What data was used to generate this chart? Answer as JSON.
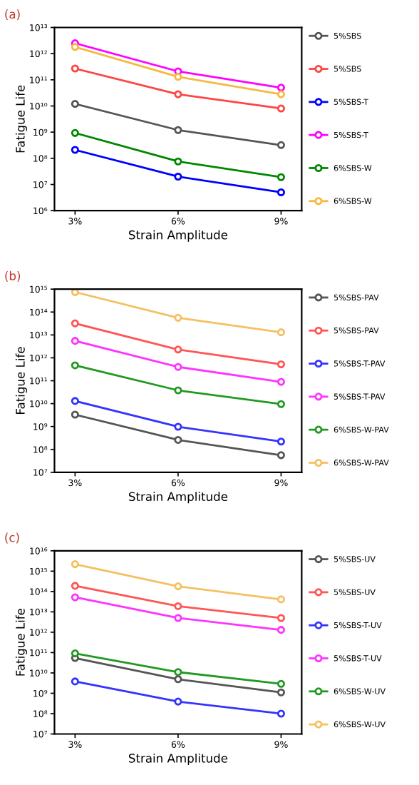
{
  "chart_data": [
    {
      "type": "line",
      "title": "(a)",
      "xlabel": "Strain Amplitude",
      "ylabel": "Fatigue Life",
      "categories": [
        "3%",
        "6%",
        "9%"
      ],
      "log": "y",
      "ylim": [
        1000000.0,
        10000000000000.0
      ],
      "yticks": [
        {
          "value": 1000000.0,
          "label": "10⁶"
        },
        {
          "value": 10000000.0,
          "label": "10⁷"
        },
        {
          "value": 100000000.0,
          "label": "10⁸"
        },
        {
          "value": 1000000000.0,
          "label": "10⁹"
        },
        {
          "value": 10000000000.0,
          "label": "10¹⁰"
        },
        {
          "value": 100000000000.0,
          "label": "10¹¹"
        },
        {
          "value": 1000000000000.0,
          "label": "10¹²"
        },
        {
          "value": 10000000000000.0,
          "label": "10¹³"
        }
      ],
      "marker": "circle",
      "legend": "right",
      "grid": false,
      "series": [
        {
          "name": "5%SBS",
          "color": "#555555",
          "values": [
            12000000000.0,
            1200000000.0,
            320000000.0
          ]
        },
        {
          "name": "5%SBS",
          "color": "#ff4444",
          "values": [
            270000000000.0,
            28000000000.0,
            8000000000.0
          ]
        },
        {
          "name": "5%SBS-T",
          "color": "#0000ff",
          "values": [
            210000000.0,
            20000000.0,
            5000000.0
          ]
        },
        {
          "name": "5%SBS-T",
          "color": "#ff00ff",
          "values": [
            2500000000000.0,
            210000000000.0,
            50000000000.0
          ]
        },
        {
          "name": "6%SBS-W",
          "color": "#008800",
          "values": [
            930000000.0,
            76000000.0,
            19000000.0
          ]
        },
        {
          "name": "6%SBS-W",
          "color": "#f5b942",
          "values": [
            1800000000000.0,
            130000000000.0,
            28000000000.0
          ]
        }
      ]
    },
    {
      "type": "line",
      "title": "(b)",
      "xlabel": "Strain Amplitude",
      "ylabel": "Fatigue Life",
      "categories": [
        "3%",
        "6%",
        "9%"
      ],
      "log": "y",
      "ylim": [
        10000000.0,
        1000000000000000.0
      ],
      "yticks": [
        {
          "value": 10000000.0,
          "label": "10⁷"
        },
        {
          "value": 100000000.0,
          "label": "10⁸"
        },
        {
          "value": 1000000000.0,
          "label": "10⁹"
        },
        {
          "value": 10000000000.0,
          "label": "10¹⁰"
        },
        {
          "value": 100000000000.0,
          "label": "10¹¹"
        },
        {
          "value": 1000000000000.0,
          "label": "10¹²"
        },
        {
          "value": 10000000000000.0,
          "label": "10¹³"
        },
        {
          "value": 100000000000000.0,
          "label": "10¹⁴"
        },
        {
          "value": 1000000000000000.0,
          "label": "10¹⁵"
        }
      ],
      "marker": "circle",
      "legend": "right",
      "grid": false,
      "series": [
        {
          "name": "5%SBS-PAV",
          "color": "#555555",
          "values": [
            3300000000.0,
            260000000.0,
            56000000.0
          ]
        },
        {
          "name": "5%SBS-PAV",
          "color": "#ff5555",
          "values": [
            32000000000000.0,
            2300000000000.0,
            520000000000.0
          ]
        },
        {
          "name": "5%SBS-T-PAV",
          "color": "#3333ff",
          "values": [
            13000000000.0,
            980000000.0,
            220000000.0
          ]
        },
        {
          "name": "5%SBS-T-PAV",
          "color": "#ff33ff",
          "values": [
            5500000000000.0,
            400000000000.0,
            89000000000.0
          ]
        },
        {
          "name": "6%SBS-W-PAV",
          "color": "#229922",
          "values": [
            470000000000.0,
            38000000000.0,
            9500000000.0
          ]
        },
        {
          "name": "6%SBS-W-PAV",
          "color": "#f5c060",
          "values": [
            740000000000000.0,
            56000000000000.0,
            13000000000000.0
          ]
        }
      ]
    },
    {
      "type": "line",
      "title": "(c)",
      "xlabel": "Strain Amplitude",
      "ylabel": "Fatigue Life",
      "categories": [
        "3%",
        "6%",
        "9%"
      ],
      "log": "y",
      "ylim": [
        10000000.0,
        1e+16
      ],
      "yticks": [
        {
          "value": 10000000.0,
          "label": "10⁷"
        },
        {
          "value": 100000000.0,
          "label": "10⁸"
        },
        {
          "value": 1000000000.0,
          "label": "10⁹"
        },
        {
          "value": 10000000000.0,
          "label": "10¹⁰"
        },
        {
          "value": 100000000000.0,
          "label": "10¹¹"
        },
        {
          "value": 1000000000000.0,
          "label": "10¹²"
        },
        {
          "value": 10000000000000.0,
          "label": "10¹³"
        },
        {
          "value": 100000000000000.0,
          "label": "10¹⁴"
        },
        {
          "value": 1000000000000000.0,
          "label": "10¹⁵"
        },
        {
          "value": 1e+16,
          "label": "10¹⁶"
        }
      ],
      "marker": "circle",
      "legend": "right",
      "grid": false,
      "series": [
        {
          "name": "5%SBS-UV",
          "color": "#555555",
          "values": [
            54000000000.0,
            4900000000.0,
            1100000000.0
          ]
        },
        {
          "name": "5%SBS-UV",
          "color": "#ff5555",
          "values": [
            190000000000000.0,
            19000000000000.0,
            5000000000000.0
          ]
        },
        {
          "name": "5%SBS-T-UV",
          "color": "#3333ff",
          "values": [
            3800000000.0,
            390000000.0,
            100000000.0
          ]
        },
        {
          "name": "5%SBS-T-UV",
          "color": "#ff33ff",
          "values": [
            52000000000000.0,
            5000000000000.0,
            1300000000000.0
          ]
        },
        {
          "name": "6%SBS-W-UV",
          "color": "#229922",
          "values": [
            91000000000.0,
            11000000000.0,
            2900000000.0
          ]
        },
        {
          "name": "6%SBS-W-UV",
          "color": "#f5c060",
          "values": [
            2200000000000000.0,
            180000000000000.0,
            41000000000000.0
          ]
        }
      ]
    }
  ]
}
